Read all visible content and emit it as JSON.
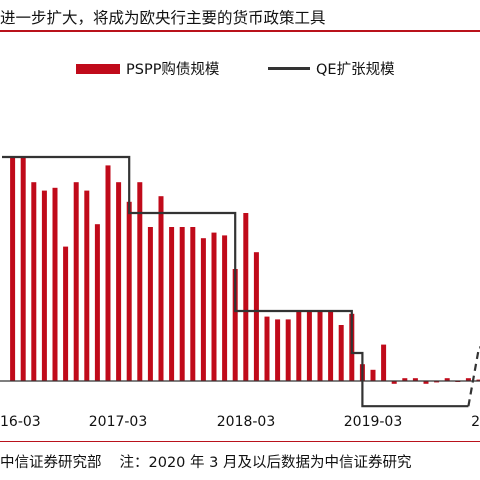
{
  "title": "进一步扩大，将成为欧央行主要的货币政策工具",
  "footer": {
    "source": "中信证券研究部",
    "note": "注：2020 年 3 月及以后数据为中信证券研究"
  },
  "colors": {
    "bar": "#c00a1a",
    "line": "#333333",
    "accent_rule": "#b9121b"
  },
  "chart_data": {
    "type": "bar",
    "legend": [
      "PSPP购债规模",
      "QE扩张规模"
    ],
    "x_tick_labels": [
      "16-03",
      "2017-03",
      "2018-03",
      "2019-03",
      "2"
    ],
    "categories": [
      "2016-04",
      "2016-05",
      "2016-06",
      "2016-07",
      "2016-08",
      "2016-09",
      "2016-10",
      "2016-11",
      "2016-12",
      "2017-01",
      "2017-02",
      "2017-03",
      "2017-04",
      "2017-05",
      "2017-06",
      "2017-07",
      "2017-08",
      "2017-09",
      "2017-10",
      "2017-11",
      "2017-12",
      "2018-01",
      "2018-02",
      "2018-03",
      "2018-04",
      "2018-05",
      "2018-06",
      "2018-07",
      "2018-08",
      "2018-09",
      "2018-10",
      "2018-11",
      "2018-12",
      "2019-01",
      "2019-02",
      "2019-03",
      "2019-04",
      "2019-05",
      "2019-06",
      "2019-07",
      "2019-08",
      "2019-09",
      "2019-10",
      "2019-11",
      "2019-12"
    ],
    "series": [
      {
        "name": "PSPP购债规模",
        "values": [
          80,
          80,
          71,
          68,
          69,
          48,
          71,
          68,
          56,
          77,
          71,
          64,
          71,
          55,
          66,
          55,
          55,
          55,
          51,
          53,
          52,
          40,
          60,
          46,
          23,
          22,
          22,
          25,
          25,
          25,
          25,
          20,
          24,
          6,
          4,
          13,
          -1,
          1,
          1,
          -1,
          -0.5,
          1,
          0,
          1,
          0.5
        ]
      },
      {
        "name": "QE扩张规模",
        "segments": [
          {
            "style": "solid",
            "points": [
              [
                "2016-03",
                80
              ],
              [
                "2017-03",
                80
              ],
              [
                "2017-03",
                60
              ],
              [
                "2018-01",
                60
              ],
              [
                "2018-01",
                25
              ],
              [
                "2018-12",
                25
              ],
              [
                "2018-12",
                10
              ],
              [
                "2019-01",
                10
              ],
              [
                "2019-01",
                -9
              ],
              [
                "2019-11",
                -9
              ]
            ]
          },
          {
            "style": "dashed",
            "points": [
              [
                "2019-11",
                -9
              ],
              [
                "2019-12",
                12
              ],
              [
                "2020-03",
                12
              ]
            ]
          },
          {
            "style": "dashed",
            "points": [
              [
                "2020-01",
                28
              ],
              [
                "2020-03",
                36
              ]
            ]
          }
        ]
      }
    ]
  }
}
